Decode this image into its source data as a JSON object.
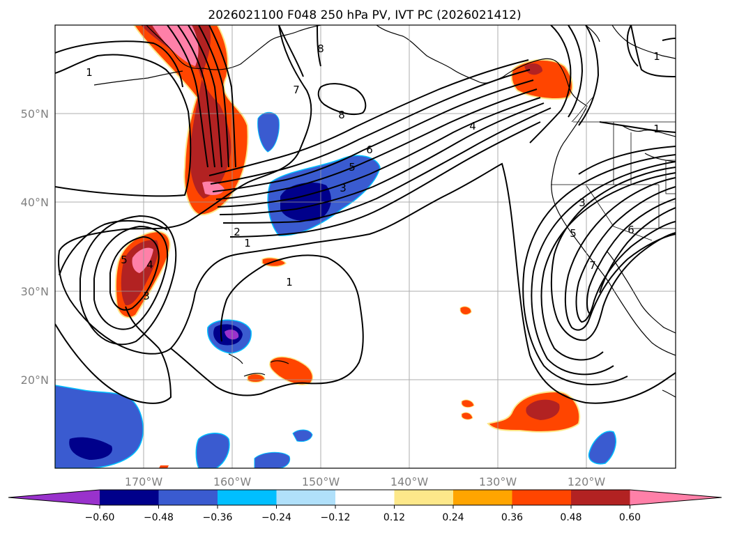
{
  "title": "2026021100 F048 250 hPa PV, IVT PC (2026021412)",
  "lat_labels": [
    "50°N",
    "40°N",
    "30°N",
    "20°N"
  ],
  "lon_labels": [
    "170°W",
    "160°W",
    "150°W",
    "140°W",
    "130°W",
    "120°W"
  ],
  "contour_labels": [
    "1",
    "1",
    "1",
    "1",
    "1",
    "2",
    "3",
    "3",
    "3",
    "4",
    "4",
    "5",
    "5",
    "5",
    "6",
    "6",
    "7",
    "7",
    "8",
    "8"
  ],
  "colorbar": {
    "tick_labels": [
      "−0.60",
      "−0.48",
      "−0.36",
      "−0.24",
      "−0.12",
      "0.12",
      "0.24",
      "0.36",
      "0.48",
      "0.60"
    ],
    "colors": [
      "#9932cc",
      "#00008b",
      "#3a5bd0",
      "#00bfff",
      "#b0e0fa",
      "#ffffff",
      "#fde88a",
      "#ffa500",
      "#ff4500",
      "#b22222",
      "#ff80a8"
    ]
  }
}
